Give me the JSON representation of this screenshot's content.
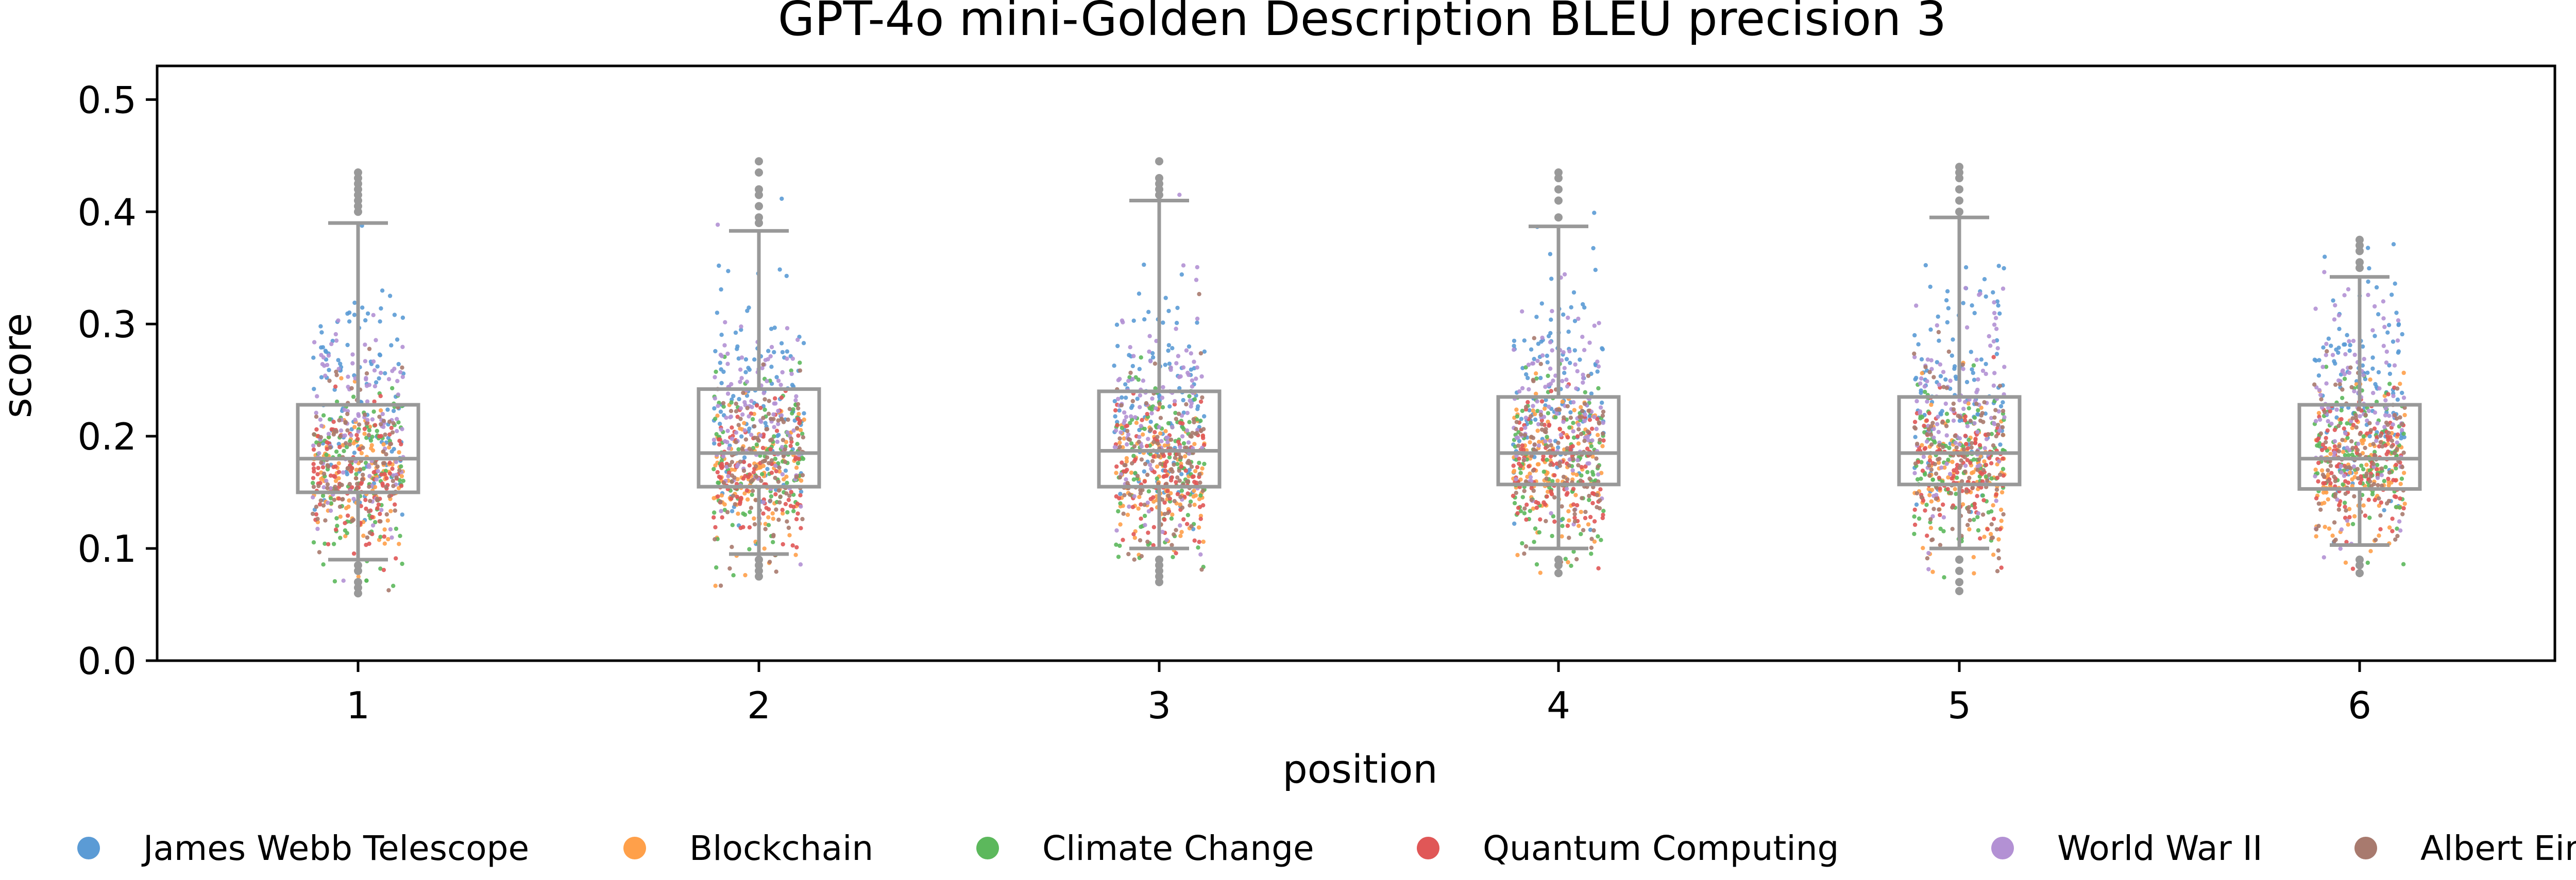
{
  "chart_data": {
    "type": "box-strip",
    "title": "GPT-4o mini-Golden Description BLEU precision 3",
    "xlabel": "position",
    "ylabel": "score",
    "categories": [
      "1",
      "2",
      "3",
      "4",
      "5",
      "6"
    ],
    "ylim": [
      0,
      0.53
    ],
    "yticks": [
      0.0,
      0.1,
      0.2,
      0.3,
      0.4,
      0.5
    ],
    "ytick_labels": [
      "0.0",
      "0.1",
      "0.2",
      "0.3",
      "0.4",
      "0.5"
    ],
    "grid": false,
    "legend_position": "bottom",
    "box_color": "#999999",
    "boxes": [
      {
        "position": "1",
        "whislo": 0.09,
        "q1": 0.15,
        "med": 0.18,
        "q3": 0.228,
        "whishi": 0.39,
        "fliers_high": [
          0.4,
          0.405,
          0.41,
          0.415,
          0.42,
          0.425,
          0.43,
          0.435
        ],
        "fliers_low": [
          0.085,
          0.08,
          0.07,
          0.065,
          0.06
        ]
      },
      {
        "position": "2",
        "whislo": 0.095,
        "q1": 0.155,
        "med": 0.185,
        "q3": 0.242,
        "whishi": 0.383,
        "fliers_high": [
          0.39,
          0.395,
          0.405,
          0.415,
          0.42,
          0.435,
          0.445
        ],
        "fliers_low": [
          0.09,
          0.085,
          0.08,
          0.075
        ]
      },
      {
        "position": "3",
        "whislo": 0.1,
        "q1": 0.155,
        "med": 0.187,
        "q3": 0.24,
        "whishi": 0.41,
        "fliers_high": [
          0.415,
          0.42,
          0.425,
          0.43,
          0.445
        ],
        "fliers_low": [
          0.09,
          0.085,
          0.08,
          0.075,
          0.07
        ]
      },
      {
        "position": "4",
        "whislo": 0.1,
        "q1": 0.157,
        "med": 0.185,
        "q3": 0.235,
        "whishi": 0.387,
        "fliers_high": [
          0.395,
          0.41,
          0.42,
          0.43,
          0.435
        ],
        "fliers_low": [
          0.09,
          0.085,
          0.078
        ]
      },
      {
        "position": "5",
        "whislo": 0.1,
        "q1": 0.157,
        "med": 0.185,
        "q3": 0.235,
        "whishi": 0.395,
        "fliers_high": [
          0.4,
          0.41,
          0.42,
          0.43,
          0.435,
          0.44
        ],
        "fliers_low": [
          0.09,
          0.08,
          0.07,
          0.062
        ]
      },
      {
        "position": "6",
        "whislo": 0.103,
        "q1": 0.153,
        "med": 0.18,
        "q3": 0.228,
        "whishi": 0.342,
        "fliers_high": [
          0.35,
          0.355,
          0.365,
          0.37,
          0.375
        ],
        "fliers_low": [
          0.09,
          0.085,
          0.078
        ]
      }
    ],
    "series": [
      {
        "name": "James Webb Telescope",
        "color": "#5b9bd5",
        "center": 0.24,
        "spread": 0.055
      },
      {
        "name": "Blockchain",
        "color": "#ffa04a",
        "center": 0.17,
        "spread": 0.035
      },
      {
        "name": "Climate Change",
        "color": "#5cb85c",
        "center": 0.175,
        "spread": 0.04
      },
      {
        "name": "Quantum Computing",
        "color": "#e05757",
        "center": 0.17,
        "spread": 0.03
      },
      {
        "name": "World War II",
        "color": "#b391d4",
        "center": 0.22,
        "spread": 0.05
      },
      {
        "name": "Albert Einstein",
        "color": "#a87a6e",
        "center": 0.175,
        "spread": 0.04
      }
    ]
  }
}
